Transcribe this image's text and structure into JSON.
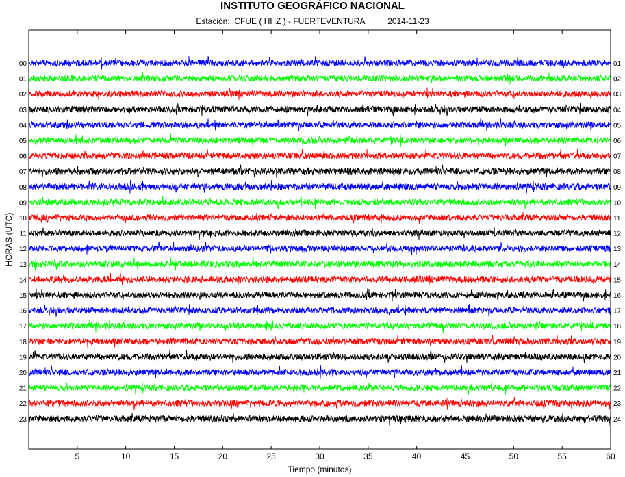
{
  "chart_data": {
    "type": "line",
    "title": "INSTITUTO GEOGRÁFICO NACIONAL",
    "station_label": "Estación:",
    "station": "CFUE ( HHZ ) - FUERTEVENTURA",
    "date": "2014-11-23",
    "xlabel": "Tiempo (minutos)",
    "ylabel": "HORAS (UTC)",
    "xlim": [
      0,
      60
    ],
    "x_ticks": [
      "5",
      "10",
      "15",
      "20",
      "25",
      "30",
      "35",
      "40",
      "45",
      "50",
      "55",
      "60"
    ],
    "left_hours": [
      "00",
      "01",
      "02",
      "03",
      "04",
      "05",
      "06",
      "07",
      "08",
      "09",
      "10",
      "11",
      "12",
      "13",
      "14",
      "15",
      "16",
      "17",
      "18",
      "19",
      "20",
      "21",
      "22",
      "23"
    ],
    "right_hours": [
      "01",
      "02",
      "03",
      "04",
      "05",
      "06",
      "07",
      "08",
      "09",
      "10",
      "11",
      "12",
      "13",
      "14",
      "15",
      "16",
      "17",
      "18",
      "19",
      "20",
      "21",
      "22",
      "23",
      "24"
    ],
    "trace_colors": [
      "#0000ff",
      "#00ff00",
      "#ff0000",
      "#000000"
    ],
    "grid": false
  }
}
